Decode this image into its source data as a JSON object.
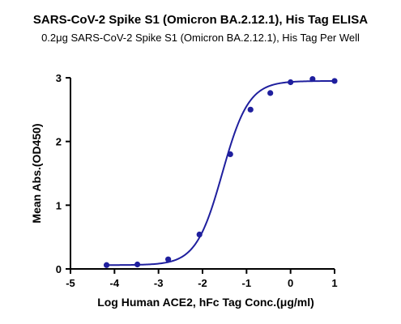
{
  "chart_data": {
    "type": "line",
    "title": "SARS-CoV-2 Spike S1 (Omicron BA.2.12.1), His Tag ELISA",
    "subtitle": "0.2μg SARS-CoV-2 Spike S1 (Omicron BA.2.12.1), His Tag Per Well",
    "xlabel": "Log Human ACE2, hFc Tag Conc.(μg/ml)",
    "ylabel": "Mean Abs.(OD450)",
    "xlim": [
      -5,
      1
    ],
    "ylim": [
      0,
      3
    ],
    "xticks": [
      "-5",
      "-4",
      "-3",
      "-2",
      "-1",
      "0",
      "1"
    ],
    "yticks": [
      "0",
      "1",
      "2",
      "3"
    ],
    "grid": false,
    "series": [
      {
        "points": [
          {
            "x": -4.18,
            "y": 0.06
          },
          {
            "x": -3.48,
            "y": 0.07
          },
          {
            "x": -2.78,
            "y": 0.15
          },
          {
            "x": -2.07,
            "y": 0.54
          },
          {
            "x": -1.37,
            "y": 1.8
          },
          {
            "x": -0.91,
            "y": 2.5
          },
          {
            "x": -0.46,
            "y": 2.76
          },
          {
            "x": 0.0,
            "y": 2.93
          },
          {
            "x": 0.5,
            "y": 2.98
          },
          {
            "x": 1.0,
            "y": 2.95
          }
        ],
        "fit": {
          "model": "4PL",
          "bottom": 0.06,
          "top": 2.95,
          "logEC50": -1.55,
          "hill": 1.45,
          "x_range": [
            -4.18,
            1.0
          ]
        },
        "color": "#1f1f9e"
      }
    ]
  }
}
